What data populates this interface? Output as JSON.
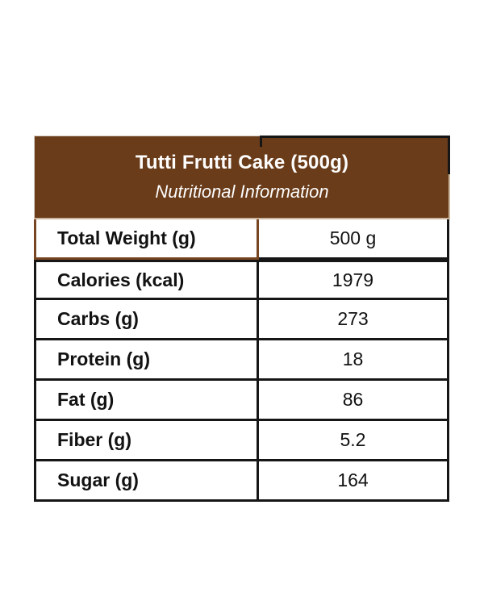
{
  "header": {
    "title": "Tutti Frutti Cake (500g)",
    "subtitle": "Nutritional Information"
  },
  "table": {
    "rows": [
      {
        "label": "Total Weight (g)",
        "value": "500 g"
      },
      {
        "label": "Calories (kcal)",
        "value": "1979"
      },
      {
        "label": "Carbs (g)",
        "value": "273"
      },
      {
        "label": "Protein (g)",
        "value": "18"
      },
      {
        "label": "Fat (g)",
        "value": "86"
      },
      {
        "label": "Fiber (g)",
        "value": "5.2"
      },
      {
        "label": "Sugar (g)",
        "value": "164"
      }
    ]
  },
  "colors": {
    "header_bg": "#6A3C1A",
    "accent_border": "#774522",
    "line_black": "#161616",
    "header_text": "#fdfdfd"
  }
}
